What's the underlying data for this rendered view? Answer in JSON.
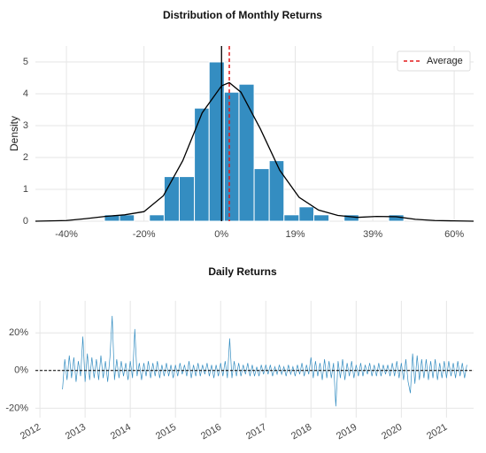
{
  "chart_data": [
    {
      "type": "histogram",
      "title": "Distribution of Monthly Returns",
      "ylabel": "Density",
      "bins": [
        -30.2,
        -26.3,
        -22.5,
        -18.6,
        -14.8,
        -10.9,
        -7.0,
        -3.2,
        0.7,
        4.5,
        8.4,
        12.3,
        16.1,
        20.0,
        23.8,
        27.7,
        31.6,
        35.4,
        39.3,
        43.1,
        47.0
      ],
      "values": [
        0.2,
        0.2,
        0,
        0.2,
        1.4,
        1.4,
        3.55,
        5.0,
        4.05,
        4.3,
        1.65,
        1.9,
        0.2,
        0.45,
        0.2,
        0,
        0.2,
        0,
        0,
        0.2
      ],
      "color": "#348dc1",
      "kde": {
        "x": [
          -48,
          -40,
          -35,
          -30,
          -25,
          -20,
          -15,
          -10,
          -5,
          0,
          2,
          5,
          10,
          15,
          20,
          25,
          30,
          35,
          40,
          45,
          50,
          55,
          60,
          65
        ],
        "y": [
          0,
          0.02,
          0.08,
          0.15,
          0.2,
          0.3,
          0.8,
          1.9,
          3.4,
          4.25,
          4.35,
          4.05,
          2.9,
          1.6,
          0.75,
          0.35,
          0.18,
          0.12,
          0.15,
          0.14,
          0.06,
          0.02,
          0.01,
          0
        ],
        "color": "#000000"
      },
      "average": {
        "name": "Average",
        "value": 2.0,
        "color": "#e41a1c"
      },
      "reference_line": 0,
      "xlim": [
        -48,
        65
      ],
      "xticks": [
        {
          "value": -40,
          "label": "-40%"
        },
        {
          "value": -20,
          "label": "-20%"
        },
        {
          "value": 0,
          "label": "0%"
        },
        {
          "value": 19,
          "label": "19%"
        },
        {
          "value": 39,
          "label": "39%"
        },
        {
          "value": 60,
          "label": "60%"
        }
      ],
      "ylim": [
        0,
        5.5
      ],
      "yticks": [
        0,
        1,
        2,
        3,
        4,
        5
      ],
      "grid": true,
      "legend": "upper right"
    },
    {
      "type": "line",
      "title": "Daily Returns",
      "color": "#348dc1",
      "reference_line": 0,
      "x": [
        2012.5,
        2012.55,
        2012.6,
        2012.65,
        2012.7,
        2012.75,
        2012.8,
        2012.85,
        2012.9,
        2012.95,
        2013.0,
        2013.05,
        2013.1,
        2013.15,
        2013.2,
        2013.25,
        2013.3,
        2013.35,
        2013.4,
        2013.45,
        2013.5,
        2013.55,
        2013.6,
        2013.65,
        2013.7,
        2013.75,
        2013.8,
        2013.85,
        2013.9,
        2013.95,
        2014.0,
        2014.05,
        2014.1,
        2014.15,
        2014.2,
        2014.25,
        2014.3,
        2014.35,
        2014.4,
        2014.45,
        2014.5,
        2014.55,
        2014.6,
        2014.65,
        2014.7,
        2014.75,
        2014.8,
        2014.85,
        2014.9,
        2014.95,
        2015.0,
        2015.05,
        2015.1,
        2015.15,
        2015.2,
        2015.25,
        2015.3,
        2015.35,
        2015.4,
        2015.45,
        2015.5,
        2015.55,
        2015.6,
        2015.65,
        2015.7,
        2015.75,
        2015.8,
        2015.85,
        2015.9,
        2015.95,
        2016.0,
        2016.05,
        2016.1,
        2016.15,
        2016.2,
        2016.25,
        2016.3,
        2016.35,
        2016.4,
        2016.45,
        2016.5,
        2016.55,
        2016.6,
        2016.65,
        2016.7,
        2016.75,
        2016.8,
        2016.85,
        2016.9,
        2016.95,
        2017.0,
        2017.05,
        2017.1,
        2017.15,
        2017.2,
        2017.25,
        2017.3,
        2017.35,
        2017.4,
        2017.45,
        2017.5,
        2017.55,
        2017.6,
        2017.65,
        2017.7,
        2017.75,
        2017.8,
        2017.85,
        2017.9,
        2017.95,
        2018.0,
        2018.05,
        2018.1,
        2018.15,
        2018.2,
        2018.25,
        2018.3,
        2018.35,
        2018.4,
        2018.45,
        2018.5,
        2018.55,
        2018.6,
        2018.65,
        2018.7,
        2018.75,
        2018.8,
        2018.85,
        2018.9,
        2018.95,
        2019.0,
        2019.05,
        2019.1,
        2019.15,
        2019.2,
        2019.25,
        2019.3,
        2019.35,
        2019.4,
        2019.45,
        2019.5,
        2019.55,
        2019.6,
        2019.65,
        2019.7,
        2019.75,
        2019.8,
        2019.85,
        2019.9,
        2019.95,
        2020.0,
        2020.05,
        2020.1,
        2020.15,
        2020.2,
        2020.25,
        2020.3,
        2020.35,
        2020.4,
        2020.45,
        2020.5,
        2020.55,
        2020.6,
        2020.65,
        2020.7,
        2020.75,
        2020.8,
        2020.85,
        2020.9,
        2020.95,
        2021.0,
        2021.05,
        2021.1,
        2021.15,
        2021.2,
        2021.25,
        2021.3,
        2021.35,
        2021.4,
        2021.45
      ],
      "values": [
        -10,
        6,
        -5,
        8,
        -4,
        7,
        -6,
        5,
        -3,
        18,
        -6,
        9,
        -5,
        7,
        -4,
        6,
        -5,
        8,
        -4,
        5,
        -6,
        7,
        29,
        -5,
        6,
        -4,
        5,
        -3,
        4,
        -5,
        5,
        -4,
        22,
        -3,
        4,
        -5,
        4,
        -3,
        5,
        -4,
        4,
        -3,
        5,
        -4,
        3,
        -3,
        4,
        -3,
        3,
        -4,
        3,
        -3,
        4,
        -2,
        3,
        -3,
        5,
        -4,
        3,
        -3,
        4,
        -3,
        3,
        -2,
        4,
        -3,
        3,
        -4,
        3,
        -3,
        4,
        -3,
        5,
        -4,
        17,
        -4,
        5,
        -3,
        4,
        -3,
        3,
        -2,
        4,
        -3,
        3,
        -3,
        2,
        -3,
        3,
        -2,
        3,
        -2,
        3,
        -3,
        2,
        -2,
        3,
        -2,
        2,
        -3,
        3,
        -2,
        2,
        -3,
        3,
        -2,
        4,
        -3,
        3,
        -2,
        7,
        -4,
        5,
        -3,
        4,
        -5,
        6,
        -4,
        5,
        -4,
        4,
        -19,
        5,
        -4,
        6,
        -5,
        4,
        -3,
        5,
        -4,
        3,
        -3,
        4,
        -3,
        3,
        -2,
        4,
        -3,
        3,
        -3,
        4,
        -3,
        3,
        -2,
        3,
        -3,
        4,
        -3,
        5,
        -4,
        4,
        -5,
        6,
        -6,
        -12,
        9,
        -7,
        8,
        -5,
        6,
        -4,
        6,
        -5,
        5,
        -4,
        6,
        -5,
        4,
        -4,
        5,
        -4,
        5,
        -3,
        4,
        -4,
        5,
        -3,
        4,
        -4,
        3
      ],
      "xlim": [
        2011.9,
        2021.6
      ],
      "xticks": [
        2012,
        2013,
        2014,
        2015,
        2016,
        2017,
        2018,
        2019,
        2020,
        2021
      ],
      "ylim": [
        -25,
        37
      ],
      "yticks": [
        {
          "value": 20,
          "label": "20%"
        },
        {
          "value": 0,
          "label": "0%"
        },
        {
          "value": -20,
          "label": "-20%"
        }
      ],
      "grid": true
    }
  ]
}
